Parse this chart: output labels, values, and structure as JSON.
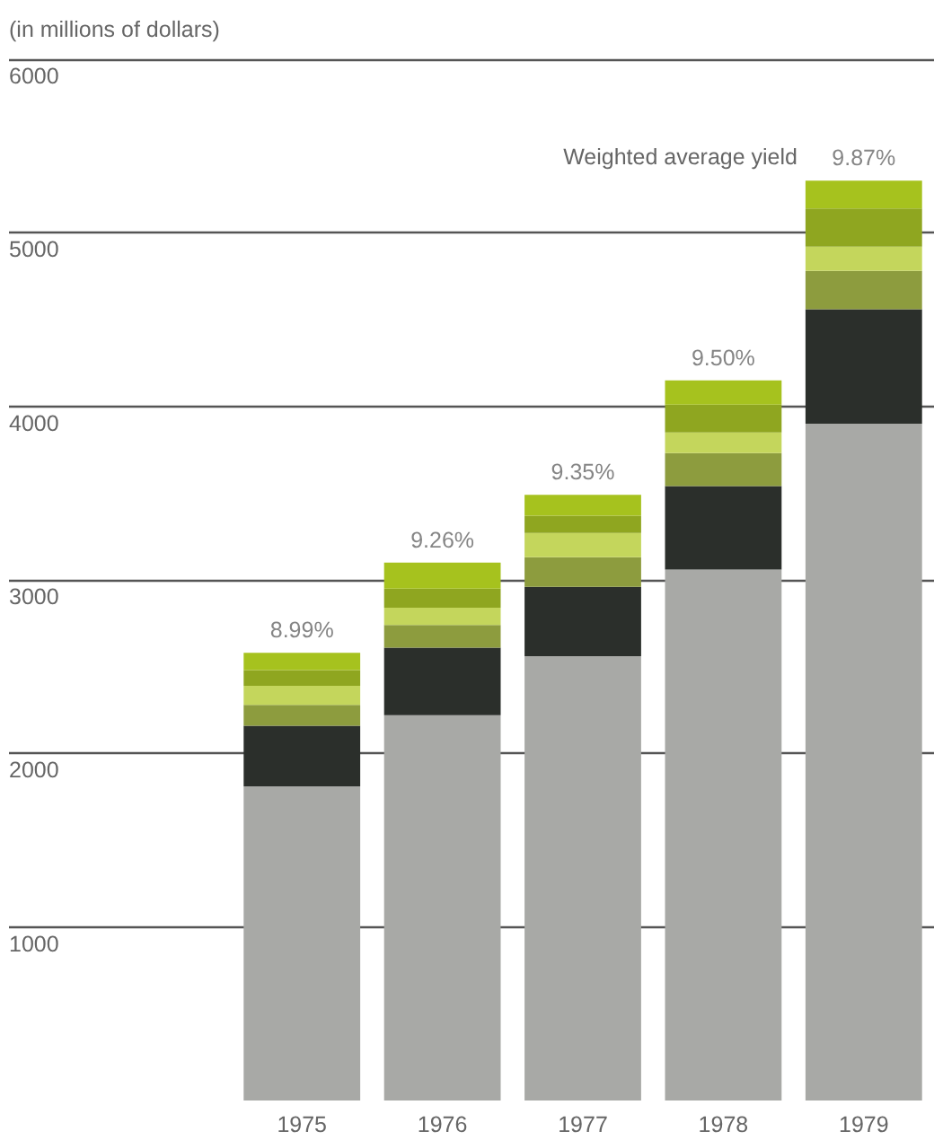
{
  "chart_data": {
    "type": "bar",
    "stacked": true,
    "ylabel": "(in millions of dollars)",
    "categories": [
      "1975",
      "1976",
      "1977",
      "1978",
      "1979"
    ],
    "series": [
      {
        "color": "#a8a9a6",
        "values": [
          1810,
          2220,
          2560,
          3060,
          3900
        ]
      },
      {
        "color": "#2b2f2b",
        "values": [
          350,
          390,
          400,
          480,
          660
        ]
      },
      {
        "color": "#8d9c3e",
        "values": [
          120,
          130,
          170,
          190,
          220
        ]
      },
      {
        "color": "#c4d65c",
        "values": [
          110,
          100,
          140,
          120,
          140
        ]
      },
      {
        "color": "#8fa620",
        "values": [
          90,
          110,
          100,
          160,
          220
        ]
      },
      {
        "color": "#a6c21e",
        "values": [
          100,
          150,
          120,
          140,
          160
        ]
      }
    ],
    "ylim": [
      0,
      6000
    ],
    "yticks": [
      1000,
      2000,
      3000,
      4000,
      5000,
      6000
    ],
    "grid": "y",
    "annotations": [
      "Weighted average yield",
      {
        "text": "8.99%",
        "x": "1975",
        "y": 2580
      },
      {
        "text": "9.26%",
        "x": "1976",
        "y": 3100
      },
      {
        "text": "9.35%",
        "x": "1977",
        "y": 3490
      },
      {
        "text": "9.50%",
        "x": "1978",
        "y": 4150
      },
      {
        "text": "9.87%",
        "x": "1979",
        "y": 5300
      }
    ]
  }
}
